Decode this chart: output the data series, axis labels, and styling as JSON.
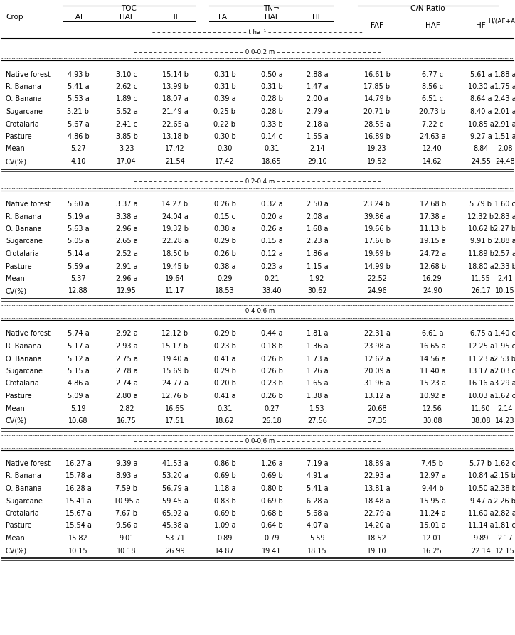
{
  "sections": [
    {
      "depth": "0.0-0.2 m",
      "rows": [
        [
          "Native forest",
          "4.93 b",
          "3.10 c",
          "15.14 b",
          "0.31 b",
          "0.50 a",
          "2.88 a",
          "16.61 b",
          "6.77 c",
          "5.61 a",
          "1.88 a"
        ],
        [
          "R. Banana",
          "5.41 a",
          "2.62 c",
          "13.99 b",
          "0.31 b",
          "0.31 b",
          "1.47 a",
          "17.85 b",
          "8.56 c",
          "10.30 a",
          "1.75 a"
        ],
        [
          "O. Banana",
          "5.53 a",
          "1.89 c",
          "18.07 a",
          "0.39 a",
          "0.28 b",
          "2.00 a",
          "14.79 b",
          "6.51 c",
          "8.64 a",
          "2.43 a"
        ],
        [
          "Sugarcane",
          "5.21 b",
          "5.52 a",
          "21.49 a",
          "0.25 b",
          "0.28 b",
          "2.79 a",
          "20.71 b",
          "20.73 b",
          "8.40 a",
          "2.01 a"
        ],
        [
          "Crotalaria",
          "5.67 a",
          "2.41 c",
          "22.65 a",
          "0.22 b",
          "0.33 b",
          "2.18 a",
          "28.55 a",
          "7.22 c",
          "10.85 a",
          "2.91 a"
        ],
        [
          "Pasture",
          "4.86 b",
          "3.85 b",
          "13.18 b",
          "0.30 b",
          "0.14 c",
          "1.55 a",
          "16.89 b",
          "24.63 a",
          "9.27 a",
          "1.51 a"
        ],
        [
          "Mean",
          "5.27",
          "3.23",
          "17.42",
          "0.30",
          "0.31",
          "2.14",
          "19.23",
          "12.40",
          "8.84",
          "2.08"
        ],
        [
          "CV(%)",
          "4.10",
          "17.04",
          "21.54",
          "17.42",
          "18.65",
          "29.10",
          "19.52",
          "14.62",
          "24.55",
          "24.48"
        ]
      ]
    },
    {
      "depth": "0.2-0.4 m",
      "rows": [
        [
          "Native forest",
          "5.60 a",
          "3.37 a",
          "14.27 b",
          "0.26 b",
          "0.32 a",
          "2.50 a",
          "23.24 b",
          "12.68 b",
          "5.79 b",
          "1.60 c"
        ],
        [
          "R. Banana",
          "5.19 a",
          "3.38 a",
          "24.04 a",
          "0.15 c",
          "0.20 a",
          "2.08 a",
          "39.86 a",
          "17.38 a",
          "12.32 b",
          "2.83 a"
        ],
        [
          "O. Banana",
          "5.63 a",
          "2.96 a",
          "19.32 b",
          "0.38 a",
          "0.26 a",
          "1.68 a",
          "19.66 b",
          "11.13 b",
          "10.62 b",
          "2.27 b"
        ],
        [
          "Sugarcane",
          "5.05 a",
          "2.65 a",
          "22.28 a",
          "0.29 b",
          "0.15 a",
          "2.23 a",
          "17.66 b",
          "19.15 a",
          "9.91 b",
          "2.88 a"
        ],
        [
          "Crotalaria",
          "5.14 a",
          "2.52 a",
          "18.50 b",
          "0.26 b",
          "0.12 a",
          "1.86 a",
          "19.69 b",
          "24.72 a",
          "11.89 b",
          "2.57 a"
        ],
        [
          "Pasture",
          "5.59 a",
          "2.91 a",
          "19.45 b",
          "0.38 a",
          "0.23 a",
          "1.15 a",
          "14.99 b",
          "12.68 b",
          "18.80 a",
          "2.33 b"
        ],
        [
          "Mean",
          "5.37",
          "2.96 a",
          "19.64",
          "0.29",
          "0.21",
          "1.92",
          "22.52",
          "16.29",
          "11.55",
          "2.41"
        ],
        [
          "CV(%)",
          "12.88",
          "12.95",
          "11.17",
          "18.53",
          "33.40",
          "30.62",
          "24.96",
          "24.90",
          "26.17",
          "10.15"
        ]
      ]
    },
    {
      "depth": "0.4-0.6 m",
      "rows": [
        [
          "Native forest",
          "5.74 a",
          "2.92 a",
          "12.12 b",
          "0.29 b",
          "0.44 a",
          "1.81 a",
          "22.31 a",
          "6.61 a",
          "6.75 a",
          "1.40 c"
        ],
        [
          "R. Banana",
          "5.17 a",
          "2.93 a",
          "15.17 b",
          "0.23 b",
          "0.18 b",
          "1.36 a",
          "23.98 a",
          "16.65 a",
          "12.25 a",
          "1.95 c"
        ],
        [
          "O. Banana",
          "5.12 a",
          "2.75 a",
          "19.40 a",
          "0.41 a",
          "0.26 b",
          "1.73 a",
          "12.62 a",
          "14.56 a",
          "11.23 a",
          "2.53 b"
        ],
        [
          "Sugarcane",
          "5.15 a",
          "2.78 a",
          "15.69 b",
          "0.29 b",
          "0.26 b",
          "1.26 a",
          "20.09 a",
          "11.40 a",
          "13.17 a",
          "2.03 c"
        ],
        [
          "Crotalaria",
          "4.86 a",
          "2.74 a",
          "24.77 a",
          "0.20 b",
          "0.23 b",
          "1.65 a",
          "31.96 a",
          "15.23 a",
          "16.16 a",
          "3.29 a"
        ],
        [
          "Pasture",
          "5.09 a",
          "2.80 a",
          "12.76 b",
          "0.41 a",
          "0.26 b",
          "1.38 a",
          "13.12 a",
          "10.92 a",
          "10.03 a",
          "1.62 c"
        ],
        [
          "Mean",
          "5.19",
          "2.82",
          "16.65",
          "0.31",
          "0.27",
          "1.53",
          "20.68",
          "12.56",
          "11.60",
          "2.14"
        ],
        [
          "CV(%)",
          "10.68",
          "16.75",
          "17.51",
          "18.62",
          "26.18",
          "27.56",
          "37.35",
          "30.08",
          "38.08",
          "14.23"
        ]
      ]
    },
    {
      "depth": "0,0-0,6 m",
      "rows": [
        [
          "Native forest",
          "16.27 a",
          "9.39 a",
          "41.53 a",
          "0.86 b",
          "1.26 a",
          "7.19 a",
          "18.89 a",
          "7.45 b",
          "5.77 b",
          "1.62 c"
        ],
        [
          "R. Banana",
          "15.78 a",
          "8.93 a",
          "53.20 a",
          "0.69 b",
          "0.69 b",
          "4.91 a",
          "22.93 a",
          "12.97 a",
          "10.84 a",
          "2.15 b"
        ],
        [
          "O. Banana",
          "16.28 a",
          "7.59 b",
          "56.79 a",
          "1.18 a",
          "0.80 b",
          "5.41 a",
          "13.81 a",
          "9.44 b",
          "10.50 a",
          "2.38 b"
        ],
        [
          "Sugarcane",
          "15.41 a",
          "10.95 a",
          "59.45 a",
          "0.83 b",
          "0.69 b",
          "6.28 a",
          "18.48 a",
          "15.95 a",
          "9.47 a",
          "2.26 b"
        ],
        [
          "Crotalaria",
          "15.67 a",
          "7.67 b",
          "65.92 a",
          "0.69 b",
          "0.68 b",
          "5.68 a",
          "22.79 a",
          "11.24 a",
          "11.60 a",
          "2.82 a"
        ],
        [
          "Pasture",
          "15.54 a",
          "9.56 a",
          "45.38 a",
          "1.09 a",
          "0.64 b",
          "4.07 a",
          "14.20 a",
          "15.01 a",
          "11.14 a",
          "1.81 c"
        ],
        [
          "Mean",
          "15.82",
          "9.01",
          "53.71",
          "0.89",
          "0.79",
          "5.59",
          "18.52",
          "12.01",
          "9.89",
          "2.17"
        ],
        [
          "CV(%)",
          "10.15",
          "10.18",
          "26.99",
          "14.87",
          "19.41",
          "18.15",
          "19.10",
          "16.25",
          "22.14",
          "12.15"
        ]
      ]
    }
  ]
}
